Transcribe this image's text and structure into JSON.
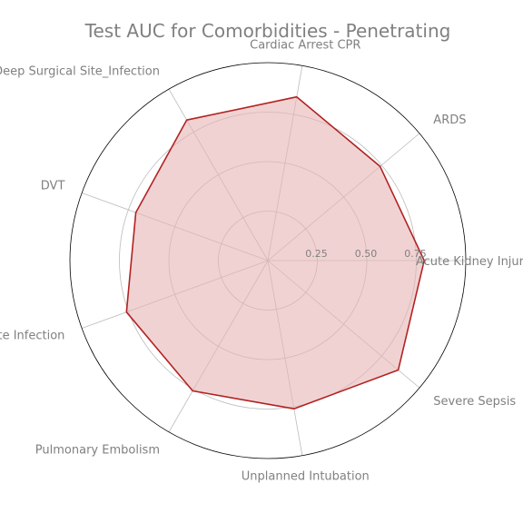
{
  "chart_data": {
    "type": "radar",
    "title": "Test AUC for Comorbidities - Penetrating",
    "categories": [
      "Acute Kidney Injury",
      "ARDS",
      "Cardiac Arrest CPR",
      "Deep Surgical Site_Infection",
      "DVT",
      "Organ Space Surgical Site Infection",
      "Pulmonary Embolism",
      "Unplanned Intubation",
      "Severe Sepsis"
    ],
    "series": [
      {
        "values": [
          0.79,
          0.74,
          0.84,
          0.82,
          0.71,
          0.76,
          0.76,
          0.76,
          0.86
        ]
      }
    ],
    "rticks": [
      0.25,
      0.5,
      0.75
    ],
    "rtick_labels": [
      "0.25",
      "0.50",
      "0.75"
    ],
    "rlim": [
      0,
      1.0
    ],
    "grid": true,
    "colors": {
      "line": "#b22222",
      "fill": "#e8b4b4",
      "grid": "#bbbbbb",
      "outer": "#000000",
      "text": "#808080"
    }
  }
}
